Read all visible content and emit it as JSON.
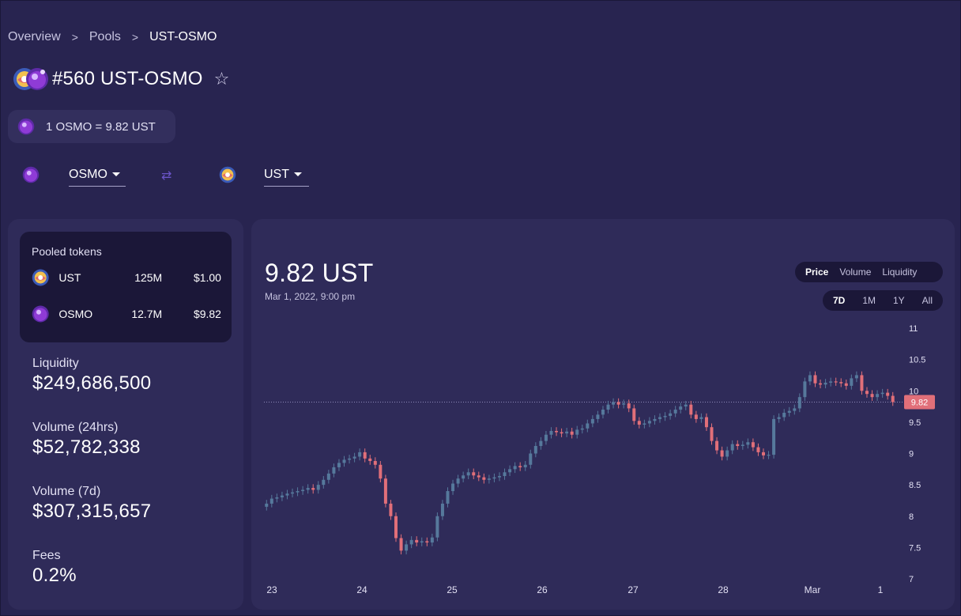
{
  "breadcrumb": {
    "items": [
      "Overview",
      "Pools",
      "UST-OSMO"
    ]
  },
  "pool": {
    "title": "#560 UST-OSMO",
    "star_icon": "star-outline-icon"
  },
  "price_pill": {
    "text": "1 OSMO = 9.82 UST"
  },
  "selectors": {
    "from_token": "OSMO",
    "to_token": "UST",
    "swap_icon": "swap-arrows-icon"
  },
  "pooled_tokens": {
    "title": "Pooled tokens",
    "rows": [
      {
        "symbol": "UST",
        "amount": "125M",
        "price": "$1.00"
      },
      {
        "symbol": "OSMO",
        "amount": "12.7M",
        "price": "$9.82"
      }
    ]
  },
  "stats": {
    "liquidity_label": "Liquidity",
    "liquidity_value": "$249,686,500",
    "volume24_label": "Volume (24hrs)",
    "volume24_value": "$52,782,338",
    "volume7_label": "Volume (7d)",
    "volume7_value": "$307,315,657",
    "fees_label": "Fees",
    "fees_value": "0.2%"
  },
  "chart_header": {
    "price": "9.82 UST",
    "date": "Mar 1, 2022, 9:00 pm"
  },
  "metric_tabs": [
    {
      "label": "Price",
      "active": true
    },
    {
      "label": "Volume",
      "active": false
    },
    {
      "label": "Liquidity",
      "active": false
    }
  ],
  "range_tabs": [
    {
      "label": "7D",
      "active": true
    },
    {
      "label": "1M",
      "active": false
    },
    {
      "label": "1Y",
      "active": false
    },
    {
      "label": "All",
      "active": false
    }
  ],
  "colors": {
    "up": "#56799c",
    "down": "#e16f79",
    "background": "#282450",
    "card": "#2f2b59",
    "dark": "#1b1738"
  },
  "chart_data": {
    "type": "candlestick",
    "x_ticks": [
      "23",
      "24",
      "25",
      "26",
      "27",
      "28",
      "Mar",
      "1"
    ],
    "y_ticks": [
      11,
      10.5,
      10,
      9.5,
      9,
      8.5,
      8,
      7.5,
      7
    ],
    "ylim": [
      7,
      11
    ],
    "current_price_label": "9.82",
    "current_price": 9.82,
    "close_prices": [
      8.2,
      8.28,
      8.3,
      8.33,
      8.36,
      8.38,
      8.4,
      8.42,
      8.45,
      8.42,
      8.5,
      8.58,
      8.68,
      8.78,
      8.85,
      8.9,
      8.92,
      8.95,
      9.02,
      8.92,
      8.88,
      8.82,
      8.6,
      8.2,
      8.0,
      7.65,
      7.45,
      7.55,
      7.62,
      7.58,
      7.6,
      7.58,
      7.66,
      8.0,
      8.2,
      8.4,
      8.52,
      8.6,
      8.65,
      8.7,
      8.65,
      8.62,
      8.58,
      8.6,
      8.62,
      8.64,
      8.7,
      8.75,
      8.8,
      8.78,
      8.82,
      9.0,
      9.12,
      9.2,
      9.3,
      9.36,
      9.34,
      9.32,
      9.35,
      9.3,
      9.38,
      9.4,
      9.48,
      9.55,
      9.62,
      9.7,
      9.78,
      9.82,
      9.78,
      9.8,
      9.72,
      9.52,
      9.46,
      9.48,
      9.52,
      9.55,
      9.58,
      9.6,
      9.64,
      9.7,
      9.75,
      9.78,
      9.62,
      9.55,
      9.58,
      9.42,
      9.2,
      9.05,
      8.95,
      9.05,
      9.15,
      9.12,
      9.14,
      9.18,
      9.1,
      9.02,
      8.97,
      8.98,
      9.55,
      9.58,
      9.65,
      9.68,
      9.72,
      9.9,
      10.15,
      10.25,
      10.12,
      10.1,
      10.13,
      10.15,
      10.14,
      10.12,
      10.08,
      10.2,
      10.25,
      10.0,
      9.95,
      9.9,
      9.95,
      9.97,
      9.92,
      9.82
    ]
  }
}
